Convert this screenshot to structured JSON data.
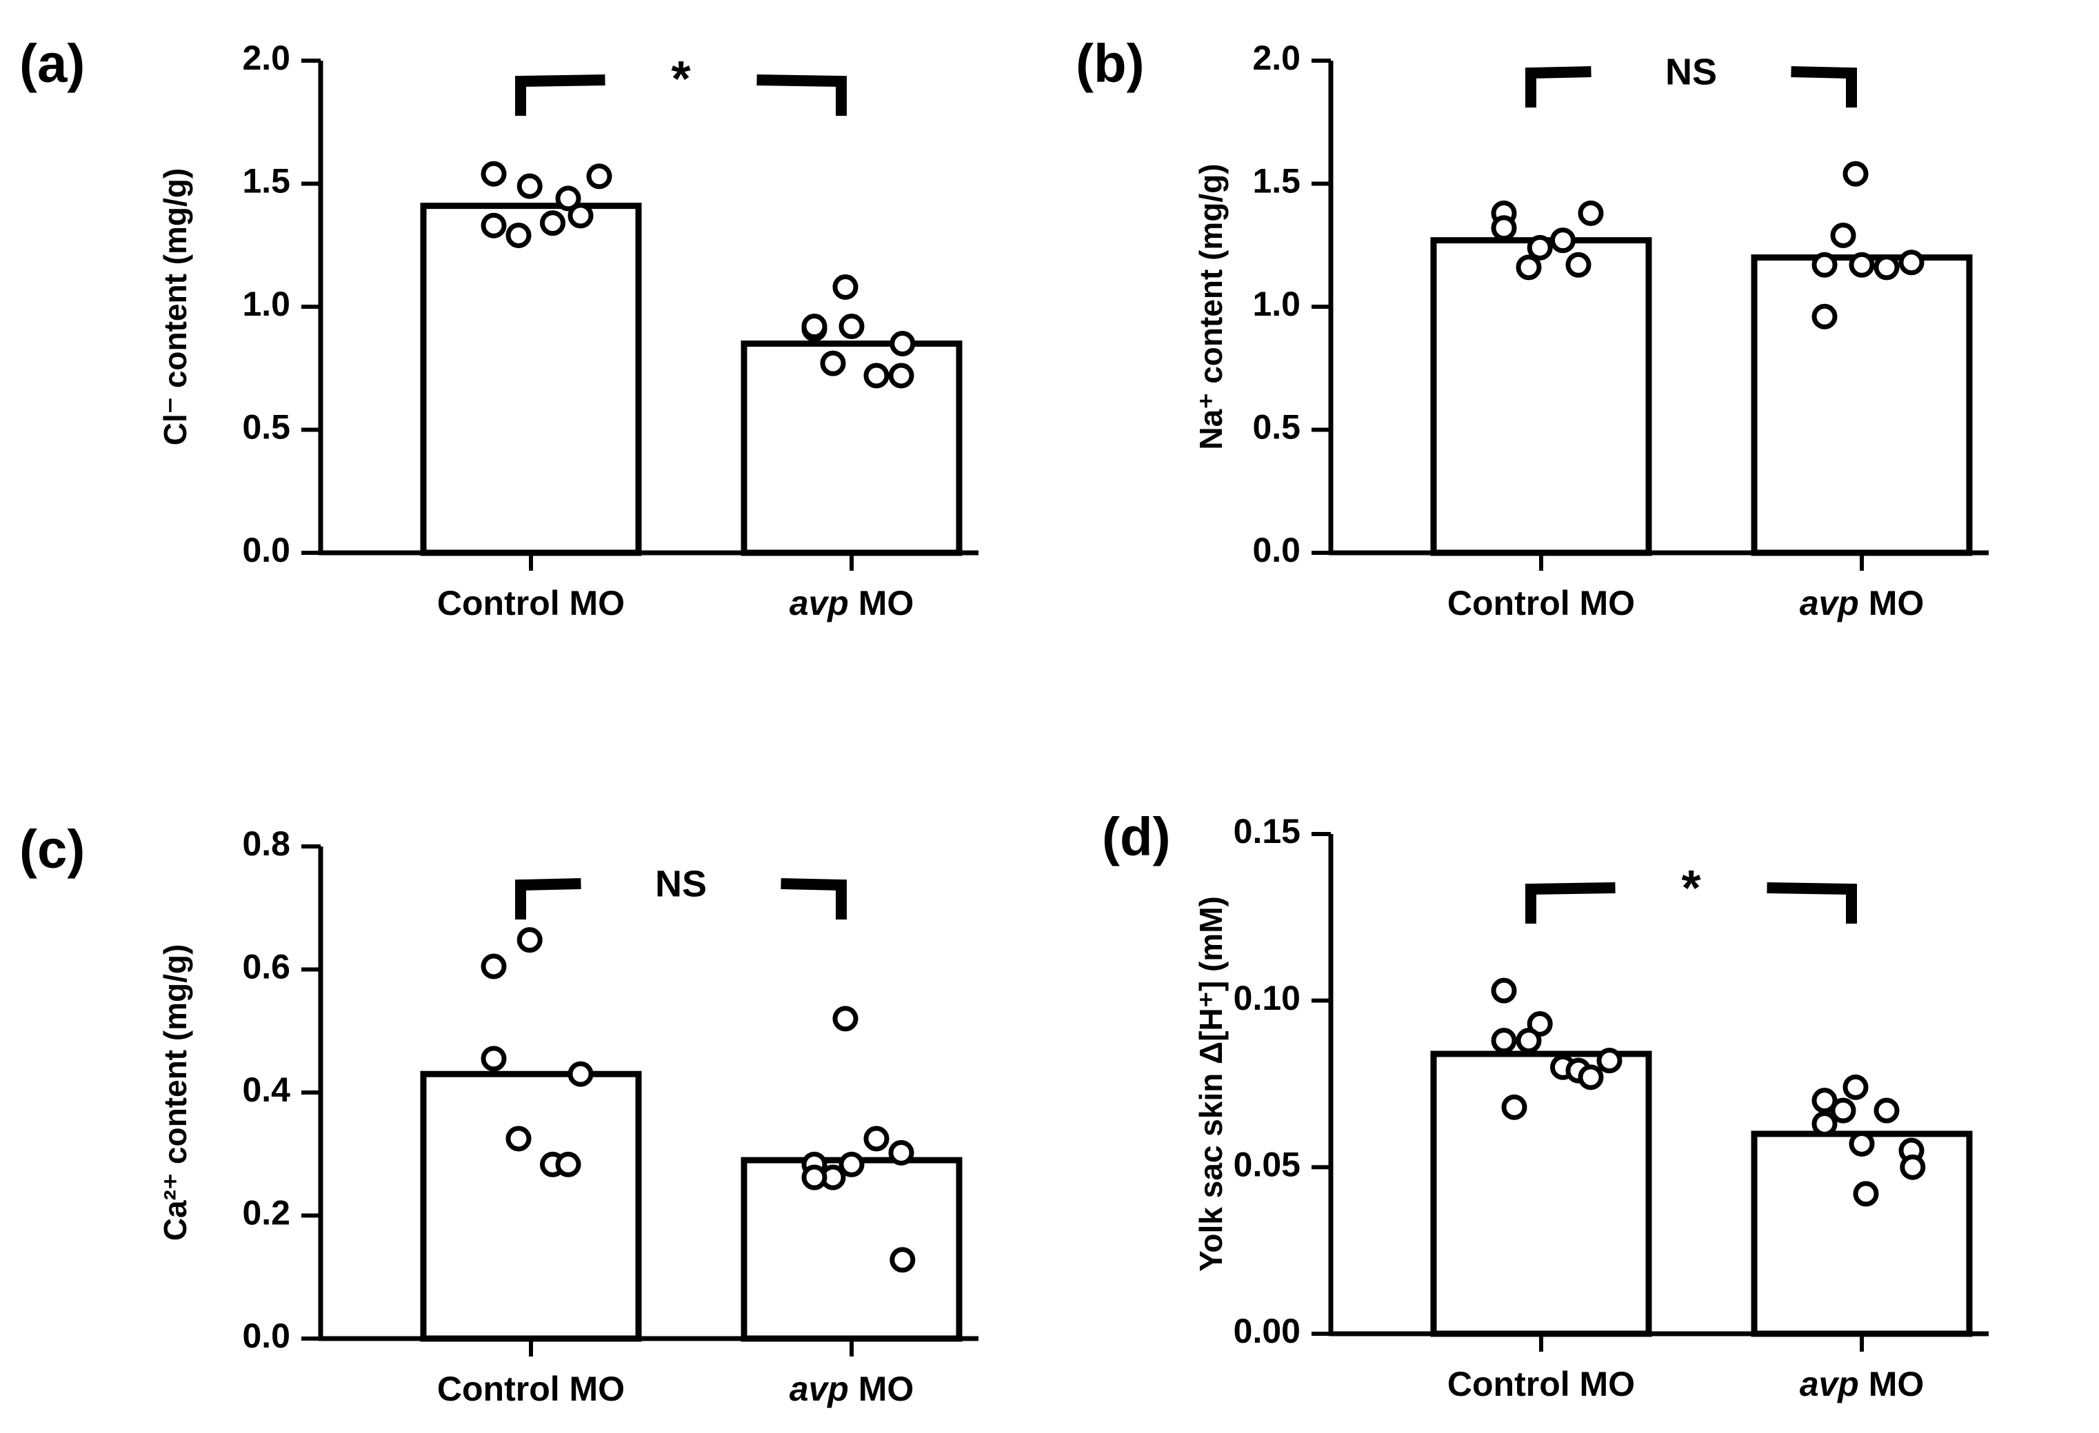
{
  "figure_colors": {
    "ink": "#000000",
    "background": "#ffffff",
    "bar_fill": "#ffffff",
    "point_fill": "#ffffff"
  },
  "chart_data": [
    {
      "panel_label": "(a)",
      "type": "bar",
      "categories": [
        "Control  MO",
        "avp MO"
      ],
      "categories_italic_prefix": [
        "",
        "avp"
      ],
      "ylabel": "Cl⁻ content  (mg/g)",
      "ylim": [
        0.0,
        2.0
      ],
      "yticks": [
        0.0,
        0.5,
        1.0,
        1.5,
        2.0
      ],
      "ytick_labels": [
        "0.0",
        "0.5",
        "1.0",
        "1.5",
        "2.0"
      ],
      "bar_values": [
        1.41,
        0.85
      ],
      "points": [
        [
          1.54,
          1.49,
          1.33,
          1.29,
          1.34,
          1.44,
          1.37,
          1.53
        ],
        [
          1.08,
          0.91,
          0.77,
          0.72,
          0.92,
          0.92,
          0.72,
          0.85
        ]
      ],
      "significance": "*"
    },
    {
      "panel_label": "(b)",
      "type": "bar",
      "categories": [
        "Control  MO",
        "avp MO"
      ],
      "categories_italic_prefix": [
        "",
        "avp"
      ],
      "ylabel": "Na⁺ content  (mg/g)",
      "ylim": [
        0.0,
        2.0
      ],
      "yticks": [
        0.0,
        0.5,
        1.0,
        1.5,
        2.0
      ],
      "ytick_labels": [
        "0.0",
        "0.5",
        "1.0",
        "1.5",
        "2.0"
      ],
      "bar_values": [
        1.27,
        1.2
      ],
      "points": [
        [
          1.38,
          1.24,
          1.32,
          1.16,
          1.27,
          1.17,
          1.38
        ],
        [
          1.54,
          1.17,
          1.29,
          1.16,
          0.96,
          1.17,
          1.18
        ]
      ],
      "significance": "NS"
    },
    {
      "panel_label": "(c)",
      "type": "bar",
      "categories": [
        "Control  MO",
        "avp MO"
      ],
      "categories_italic_prefix": [
        "",
        "avp"
      ],
      "ylabel": "Ca²⁺ content  (mg/g)",
      "ylim": [
        0.0,
        0.8
      ],
      "yticks": [
        0.0,
        0.2,
        0.4,
        0.6,
        0.8
      ],
      "ytick_labels": [
        "0.0",
        "0.2",
        "0.4",
        "0.6",
        "0.8"
      ],
      "bar_values": [
        0.43,
        0.29
      ],
      "points": [
        [
          0.605,
          0.648,
          0.455,
          0.325,
          0.283,
          0.283,
          0.43
        ],
        [
          0.52,
          0.283,
          0.262,
          0.325,
          0.262,
          0.283,
          0.302,
          0.128
        ]
      ],
      "significance": "NS"
    },
    {
      "panel_label": "(d)",
      "type": "bar",
      "categories": [
        "Control  MO",
        "avp MO"
      ],
      "categories_italic_prefix": [
        "",
        "avp"
      ],
      "ylabel": "Yolk sac skin Δ[H⁺] (mM)",
      "ylim": [
        0.0,
        0.15
      ],
      "yticks": [
        0.0,
        0.05,
        0.1,
        0.15
      ],
      "ytick_labels": [
        "0.00",
        "0.05",
        "0.10",
        "0.15"
      ],
      "bar_values": [
        0.084,
        0.06
      ],
      "points": [
        [
          0.103,
          0.093,
          0.088,
          0.088,
          0.08,
          0.079,
          0.077,
          0.082,
          0.068
        ],
        [
          0.074,
          0.07,
          0.067,
          0.067,
          0.063,
          0.057,
          0.055,
          0.05,
          0.042
        ]
      ],
      "significance": "*"
    }
  ]
}
